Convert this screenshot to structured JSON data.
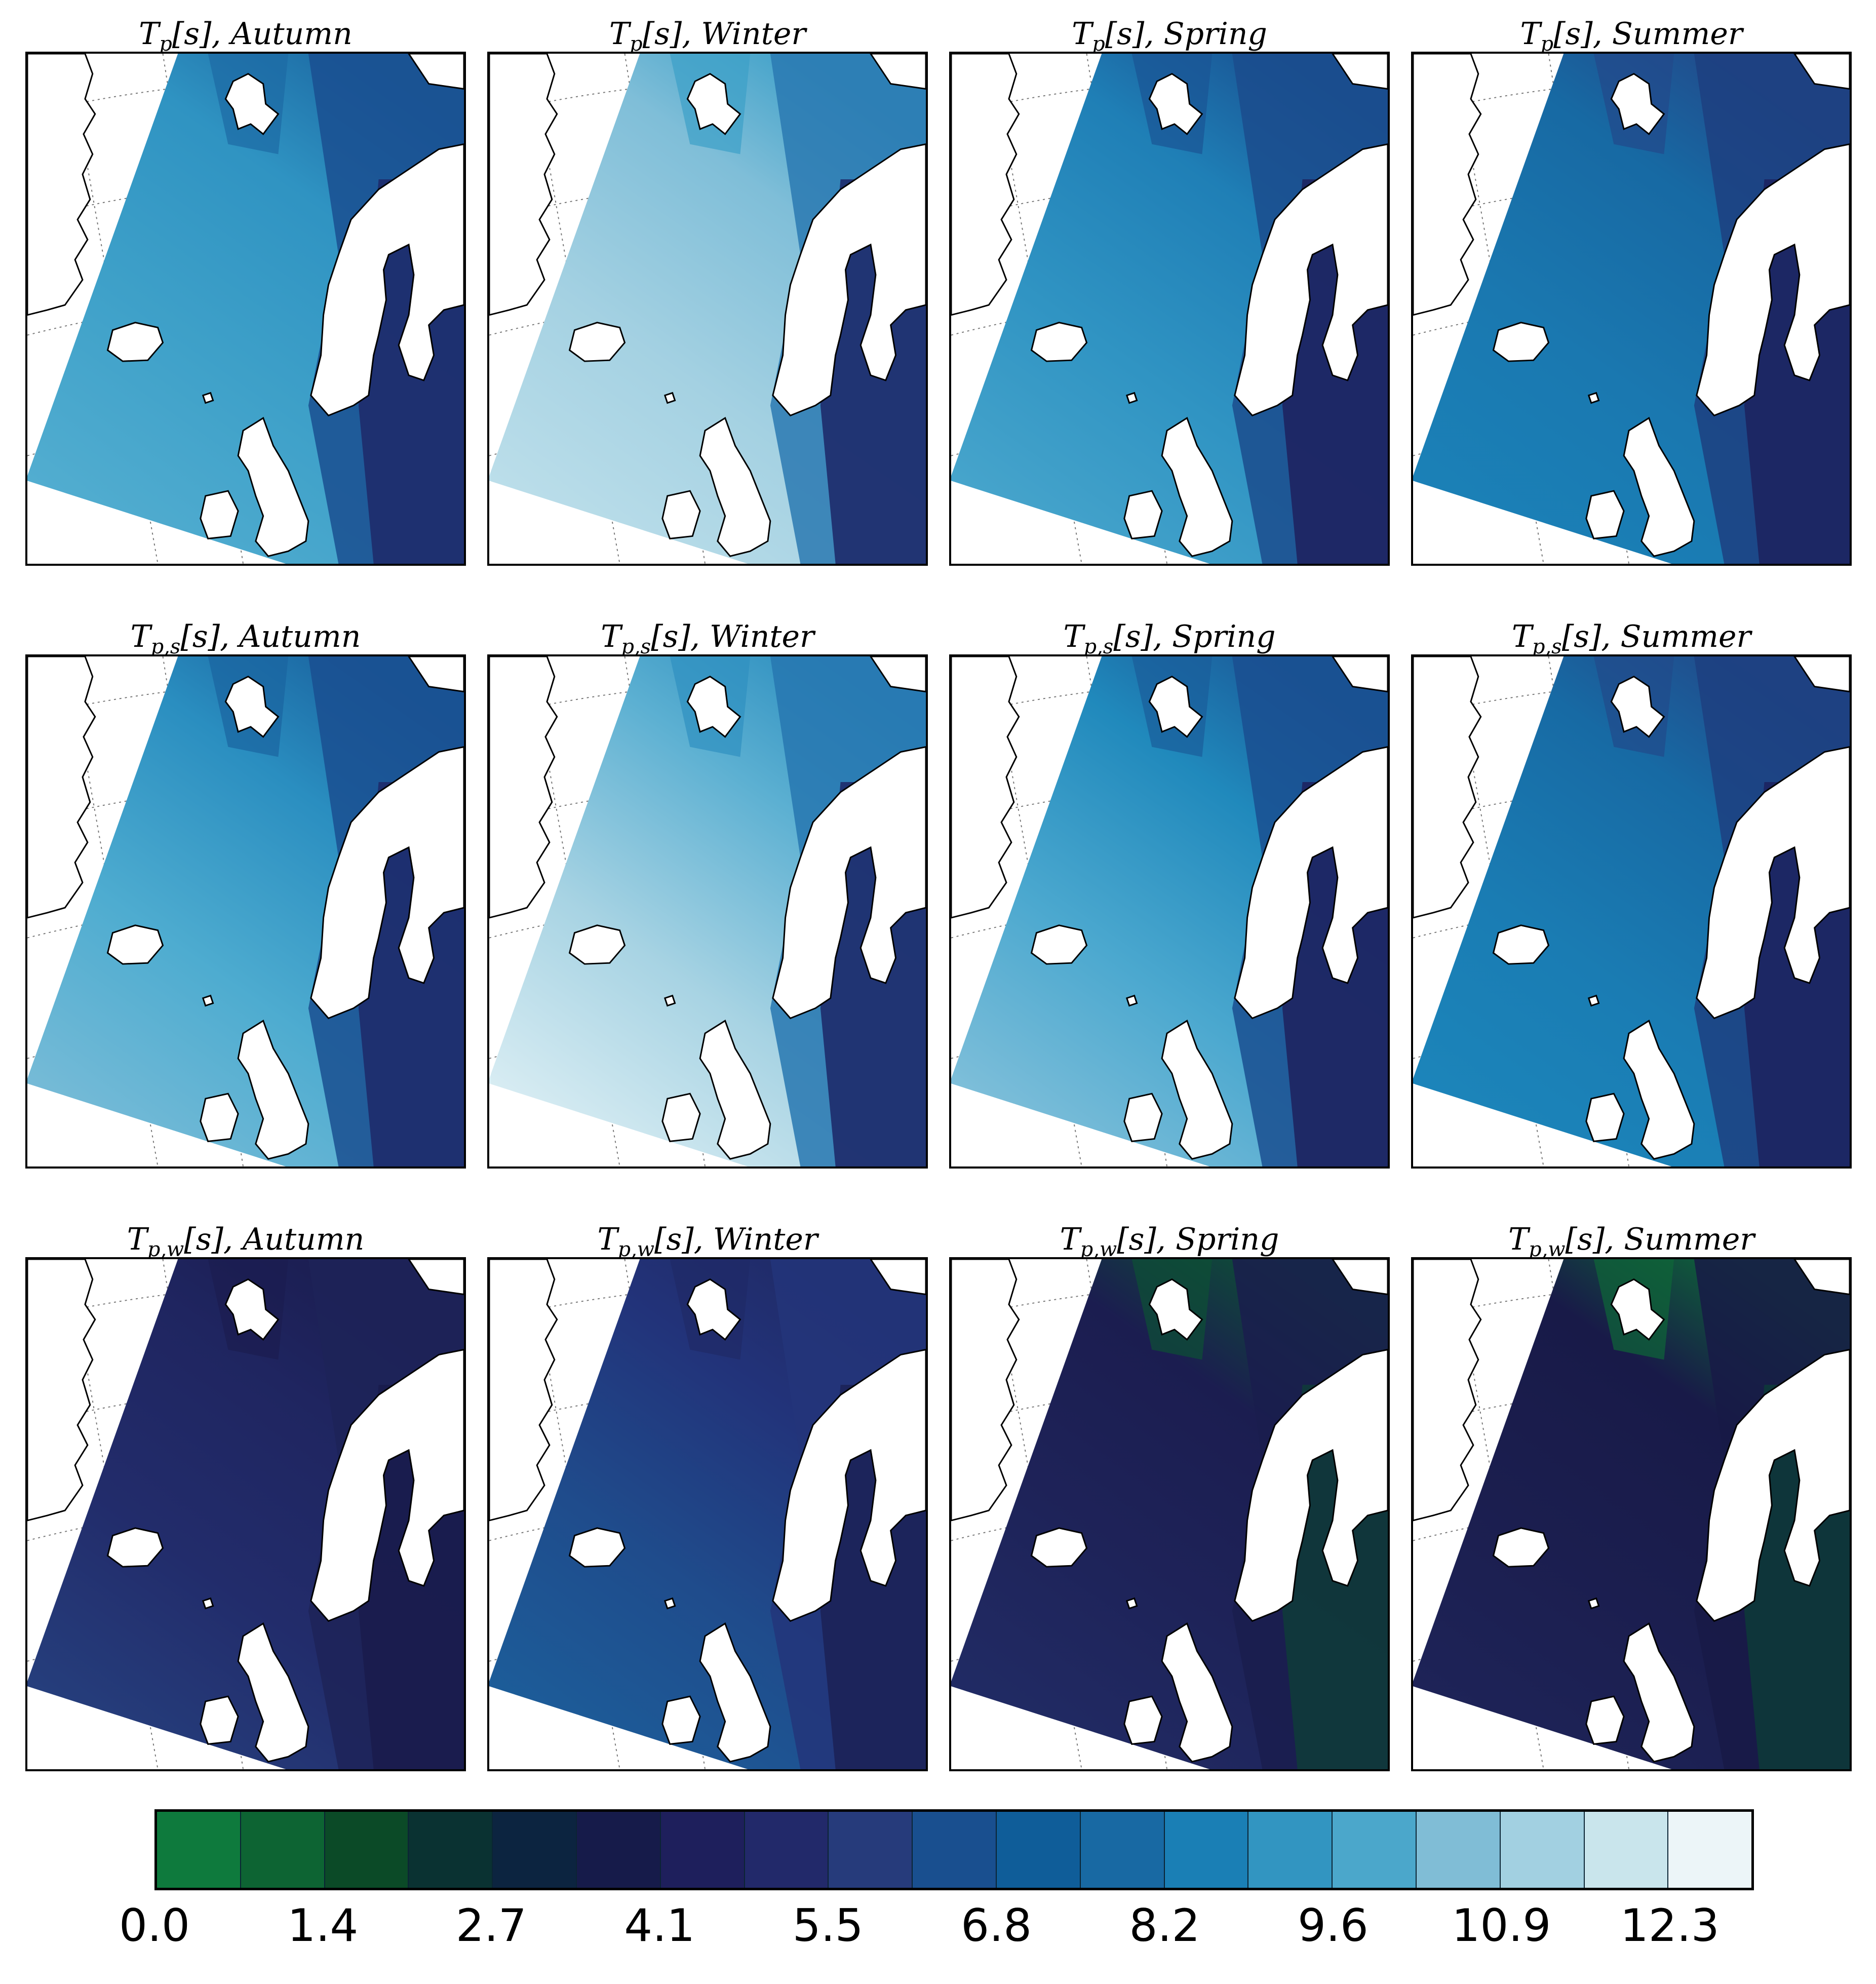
{
  "colorbar": {
    "colors": [
      "#0e7a3d",
      "#0d6433",
      "#0b4a27",
      "#0a3232",
      "#0c2440",
      "#161b4a",
      "#1e1f5c",
      "#22296a",
      "#263b7b",
      "#194f8f",
      "#0f5d99",
      "#1869a3",
      "#1a7fb5",
      "#3295c1",
      "#4ba7cb",
      "#80bdd6",
      "#a2d0e1",
      "#c9e5ec",
      "#ecf5f8"
    ],
    "ticks": [
      "0.0",
      "1.4",
      "2.7",
      "4.1",
      "5.5",
      "6.8",
      "8.2",
      "9.6",
      "10.9",
      "12.3"
    ]
  },
  "panels": [
    {
      "title": "Tp[s], Autumn",
      "colors": {
        "far": "#2f93c2",
        "mid": "#3fa1c9",
        "near": "#55afd1",
        "nw": "#1c6aa4",
        "coast": "#1a4f91",
        "inner": "#1e2b6b"
      }
    },
    {
      "title": "Tp[s], Winter",
      "colors": {
        "far": "#7fbed8",
        "mid": "#a4d1e2",
        "near": "#bfe0eb",
        "nw": "#3c9fc8",
        "coast": "#2a79b2",
        "inner": "#1e2b6b"
      }
    },
    {
      "title": "Tp[s], Spring",
      "colors": {
        "far": "#1f7fb6",
        "mid": "#3094c3",
        "near": "#4aa7cd",
        "nw": "#195494",
        "coast": "#1b4c8d",
        "inner": "#1e2460"
      }
    },
    {
      "title": "Tp[s], Summer",
      "colors": {
        "far": "#1769a3",
        "mid": "#1a78b0",
        "near": "#1b82b8",
        "nw": "#22498a",
        "coast": "#1d3f80",
        "inner": "#1d2460"
      }
    },
    {
      "title": "Tp,s[s], Autumn",
      "colors": {
        "far": "#2a8ec0",
        "mid": "#4eacd0",
        "near": "#7cbdd8",
        "nw": "#1a64a0",
        "coast": "#1a4f91",
        "inner": "#1e2b6b"
      }
    },
    {
      "title": "Tp,s[s], Winter",
      "colors": {
        "far": "#5cb0d2",
        "mid": "#a7d3e3",
        "near": "#dff0f5",
        "nw": "#2f90c0",
        "coast": "#2777b0",
        "inner": "#1e2b6b"
      }
    },
    {
      "title": "Tp,s[s], Spring",
      "colors": {
        "far": "#2089bc",
        "mid": "#4ba8cf",
        "near": "#86c2db",
        "nw": "#1a5c9a",
        "coast": "#1a4f91",
        "inner": "#1e2460"
      }
    },
    {
      "title": "Tp,s[s], Summer",
      "colors": {
        "far": "#176aa4",
        "mid": "#1a7cb3",
        "near": "#1c86bb",
        "nw": "#214a8a",
        "coast": "#1d3f80",
        "inner": "#1d2460"
      }
    },
    {
      "title": "Tp,w[s], Autumn",
      "colors": {
        "far": "#1f2560",
        "mid": "#222c6b",
        "near": "#26417f",
        "nw": "#1b1d50",
        "coast": "#1d2358",
        "inner": "#1a1c4d"
      }
    },
    {
      "title": "Tp,w[s], Winter",
      "colors": {
        "far": "#22337a",
        "mid": "#1f4c8c",
        "near": "#1c5f9b",
        "nw": "#202a66",
        "coast": "#23357a",
        "inner": "#1c2258"
      }
    },
    {
      "title": "Tp,w[s], Spring",
      "colors": {
        "far": "#1b1d50",
        "mid": "#1e2359",
        "near": "#212c66",
        "nw": "#0d5035",
        "coast": "#1a1d4d",
        "inner": "#103a3a"
      }
    },
    {
      "title": "Tp,w[s], Summer",
      "colors": {
        "far": "#181a48",
        "mid": "#1b1e4f",
        "near": "#1e2459",
        "nw": "#0e6638",
        "coast": "#181a46",
        "inner": "#0d3838"
      }
    }
  ]
}
